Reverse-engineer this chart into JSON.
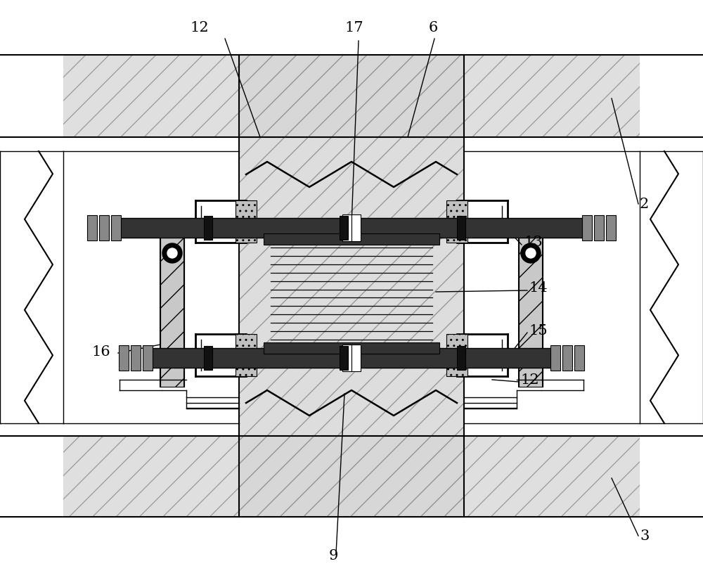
{
  "bg_color": "#ffffff",
  "lc": "#000000",
  "fig_width": 10.0,
  "fig_height": 8.22,
  "dpi": 100,
  "label_fontsize": 15
}
